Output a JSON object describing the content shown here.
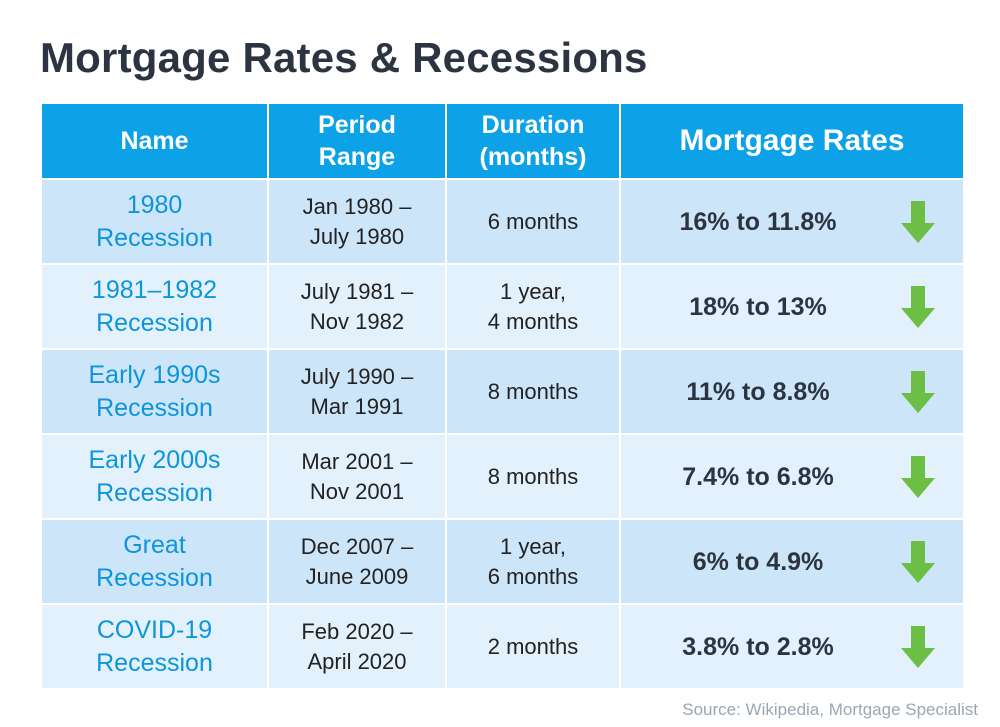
{
  "title": "Mortgage Rates & Recessions",
  "header": {
    "name": "Name",
    "period": [
      "Period",
      "Range"
    ],
    "duration": [
      "Duration",
      "(months)"
    ],
    "rates": "Mortgage Rates"
  },
  "rows": [
    {
      "name": [
        "1980",
        "Recession"
      ],
      "period": [
        "Jan 1980 –",
        "July 1980"
      ],
      "duration": [
        "6 months"
      ],
      "rates": "16% to 11.8%"
    },
    {
      "name": [
        "1981–1982",
        "Recession"
      ],
      "period": [
        "July 1981 –",
        "Nov 1982"
      ],
      "duration": [
        "1 year,",
        "4 months"
      ],
      "rates": "18% to 13%"
    },
    {
      "name": [
        "Early 1990s",
        "Recession"
      ],
      "period": [
        "July 1990 –",
        "Mar 1991"
      ],
      "duration": [
        "8 months"
      ],
      "rates": "11% to 8.8%"
    },
    {
      "name": [
        "Early 2000s",
        "Recession"
      ],
      "period": [
        "Mar 2001 –",
        "Nov 2001"
      ],
      "duration": [
        "8 months"
      ],
      "rates": "7.4% to 6.8%"
    },
    {
      "name": [
        "Great",
        "Recession"
      ],
      "period": [
        "Dec 2007 –",
        "June 2009"
      ],
      "duration": [
        "1 year,",
        "6 months"
      ],
      "rates": "6% to 4.9%"
    },
    {
      "name": [
        "COVID-19",
        "Recession"
      ],
      "period": [
        "Feb 2020 –",
        "April 2020"
      ],
      "duration": [
        "2 months"
      ],
      "rates": "3.8% to 2.8%"
    }
  ],
  "icons": {
    "rate_change": "arrow-down-icon"
  },
  "colors": {
    "header": "#0da2e8",
    "name_text": "#0d95dc",
    "arrow": "#6cbe45",
    "row_dark": "#cde5f9",
    "row_light": "#e3f1fc"
  },
  "source": "Source: Wikipedia, Mortgage Specialist"
}
